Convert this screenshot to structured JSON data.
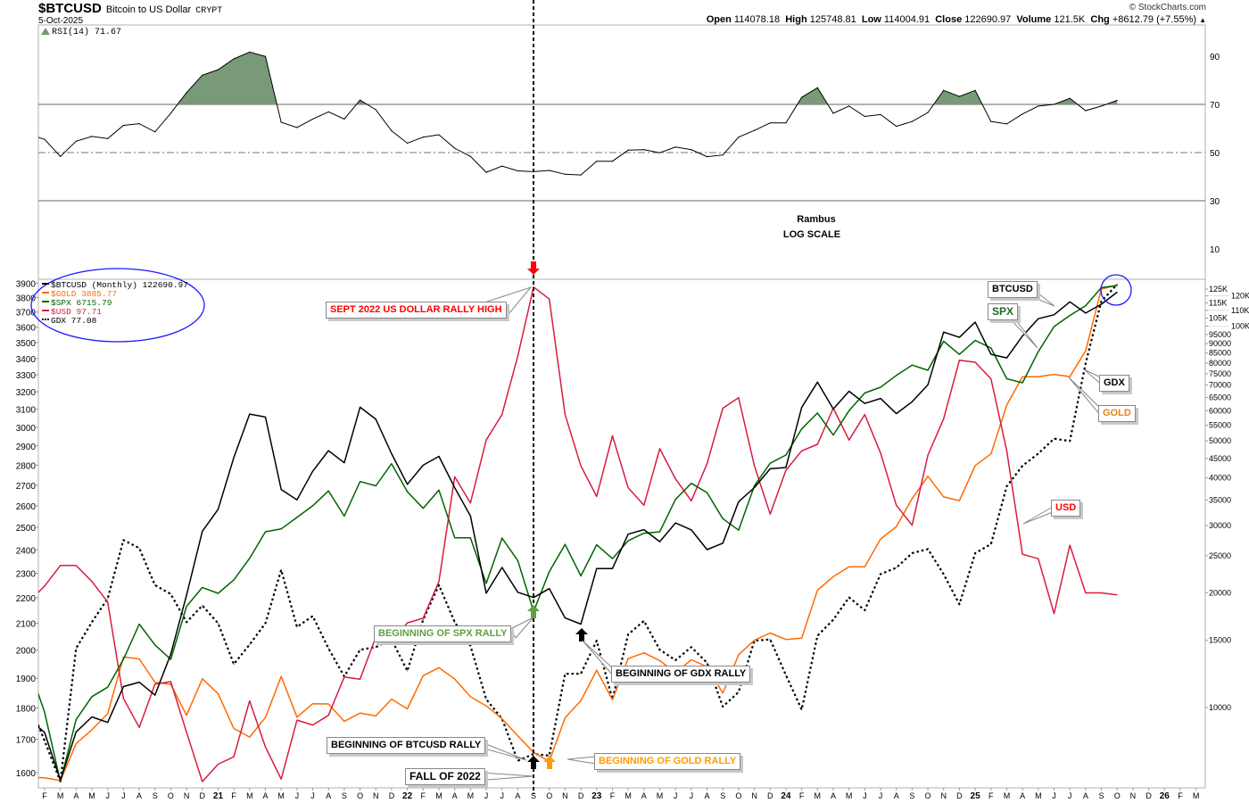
{
  "header": {
    "symbol": "$BTCUSD",
    "name": "Bitcoin to US Dollar",
    "exchange": "CRYPT",
    "date": "5-Oct-2025",
    "copyright": "© StockCharts.com",
    "open_label": "Open",
    "open": "114078.18",
    "high_label": "High",
    "high": "125748.81",
    "low_label": "Low",
    "low": "114004.91",
    "close_label": "Close",
    "close": "122690.97",
    "volume_label": "Volume",
    "volume": "121.5K",
    "chg_label": "Chg",
    "chg": "+8612.79 (+7.55%)",
    "chg_icon": "triangle-up-icon"
  },
  "rsi_panel": {
    "title": "RSI(14) 71.67",
    "ticks": [
      "90",
      "70",
      "50",
      "30",
      "10"
    ],
    "overbought": 70,
    "midline": 50,
    "oversold": 30,
    "fill_color": "#789a78"
  },
  "notes": {
    "author": "Rambus",
    "scale": "LOG SCALE"
  },
  "legend": [
    {
      "text": "$BTCUSD (Monthly) 122690.97",
      "color": "#000000"
    },
    {
      "text": "$GOLD 3885.77",
      "color": "#ff6a00"
    },
    {
      "text": "$SPX 6715.79",
      "color": "#006400"
    },
    {
      "text": "$USD 97.71",
      "color": "#d81c3f"
    },
    {
      "text": "GDX 77.08",
      "color": "#000000"
    }
  ],
  "callouts": {
    "usd_high": {
      "text": "SEPT 2022 US DOLLAR RALLY HIGH",
      "color": "#ff0000"
    },
    "btcusd": {
      "text": "BTCUSD",
      "color": "#000000"
    },
    "spx": {
      "text": "SPX",
      "color": "#1e6b1e"
    },
    "gdx": {
      "text": "GDX",
      "color": "#000000"
    },
    "gold": {
      "text": "GOLD",
      "color": "#e8841a"
    },
    "usd": {
      "text": "USD",
      "color": "#ff0000"
    },
    "spx_rally": {
      "text": "BEGINNING OF SPX RALLY",
      "color": "#5fa040"
    },
    "gdx_rally": {
      "text": "BEGINNING OF GDX RALLY",
      "color": "#000000"
    },
    "btc_rally": {
      "text": "BEGINNING OF BTCUSD RALLY",
      "color": "#000000"
    },
    "fall": {
      "text": "FALL OF 2022",
      "color": "#000000"
    },
    "gold_rally": {
      "text": "BEGINNING OF GOLD RALLY",
      "color": "#ff9a00"
    }
  },
  "chart_data": [
    {
      "type": "line",
      "title": "RSI(14) 71.67",
      "ylim": [
        0,
        100
      ],
      "yticks": [
        90,
        70,
        50,
        30,
        10
      ],
      "x_start": "2020-01",
      "x_end": "2025-10",
      "x_freq": "monthly",
      "series": [
        {
          "name": "RSI(14)",
          "values": [
            57.5,
            55.5,
            48.4,
            54.7,
            56.7,
            55.8,
            61.3,
            62.0,
            58.6,
            66.3,
            74.9,
            82.1,
            84.4,
            88.9,
            91.7,
            89.9,
            62.6,
            60.4,
            63.9,
            66.9,
            63.9,
            71.8,
            67.8,
            59.0,
            53.9,
            56.4,
            57.4,
            51.8,
            48.4,
            41.8,
            44.4,
            42.4,
            42.1,
            42.6,
            41.0,
            40.7,
            46.4,
            46.4,
            51.0,
            51.2,
            49.9,
            52.3,
            51.2,
            48.3,
            49.0,
            56.4,
            59.2,
            62.3,
            62.3,
            72.9,
            76.9,
            66.3,
            69.3,
            65.0,
            65.8,
            60.9,
            62.9,
            66.6,
            75.8,
            73.3,
            75.8,
            62.9,
            61.9,
            66.0,
            69.3,
            70.0,
            72.5,
            67.4,
            69.3,
            71.67
          ]
        }
      ]
    },
    {
      "type": "line",
      "title": "$BTCUSD (Monthly)",
      "log_scale": true,
      "x_start": "2020-01",
      "x_end": "2025-10",
      "x_freq": "monthly",
      "x_tick_labels": [
        "F",
        "M",
        "A",
        "M",
        "J",
        "J",
        "A",
        "S",
        "O",
        "N",
        "D",
        "21",
        "F",
        "M",
        "A",
        "M",
        "J",
        "J",
        "A",
        "S",
        "O",
        "N",
        "D",
        "22",
        "F",
        "M",
        "A",
        "M",
        "J",
        "J",
        "A",
        "S",
        "O",
        "N",
        "D",
        "23",
        "F",
        "M",
        "A",
        "M",
        "J",
        "J",
        "A",
        "S",
        "O",
        "N",
        "D",
        "24",
        "F",
        "M",
        "A",
        "M",
        "J",
        "J",
        "A",
        "S",
        "O",
        "N",
        "D",
        "25",
        "F",
        "M",
        "A",
        "M",
        "J",
        "J",
        "A",
        "S",
        "O",
        "N",
        "D",
        "26",
        "F",
        "M"
      ],
      "left_axis": {
        "ticks": [
          1600,
          1700,
          1800,
          1900,
          2000,
          2100,
          2200,
          2300,
          2400,
          2500,
          2600,
          2700,
          2800,
          2900,
          3000,
          3100,
          3200,
          3300,
          3400,
          3500,
          3600,
          3700,
          3800,
          3900
        ]
      },
      "right_axis": {
        "ticks": [
          {
            "v": 125000,
            "label": "125K"
          },
          {
            "v": 120000,
            "label": "120K"
          },
          {
            "v": 115000,
            "label": "115K"
          },
          {
            "v": 110000,
            "label": "110K"
          },
          {
            "v": 105000,
            "label": "105K"
          },
          {
            "v": 100000,
            "label": "100K"
          },
          {
            "v": 95000,
            "label": "95000"
          },
          {
            "v": 90000,
            "label": "90000"
          },
          {
            "v": 85000,
            "label": "85000"
          },
          {
            "v": 80000,
            "label": "80000"
          },
          {
            "v": 75000,
            "label": "75000"
          },
          {
            "v": 70000,
            "label": "70000"
          },
          {
            "v": 65000,
            "label": "65000"
          },
          {
            "v": 60000,
            "label": "60000"
          },
          {
            "v": 55000,
            "label": "55000"
          },
          {
            "v": 50000,
            "label": "50000"
          },
          {
            "v": 45000,
            "label": "45000"
          },
          {
            "v": 40000,
            "label": "40000"
          },
          {
            "v": 35000,
            "label": "35000"
          },
          {
            "v": 30000,
            "label": "30000"
          },
          {
            "v": 25000,
            "label": "25000"
          },
          {
            "v": 20000,
            "label": "20000"
          },
          {
            "v": 15000,
            "label": "15000"
          },
          {
            "v": 10000,
            "label": "10000"
          }
        ]
      },
      "series": [
        {
          "name": "$BTCUSD",
          "axis": "right",
          "color": "#000000",
          "style": "solid",
          "values": [
            9350,
            8600,
            6440,
            8630,
            9450,
            9140,
            11350,
            11650,
            10780,
            13800,
            19700,
            28990,
            33100,
            45240,
            58800,
            57750,
            37300,
            35040,
            41630,
            47150,
            43820,
            61300,
            57000,
            46300,
            38480,
            43190,
            45540,
            37710,
            31800,
            19940,
            23300,
            20050,
            19430,
            20500,
            17170,
            16550,
            23140,
            23150,
            28480,
            29270,
            27220,
            30480,
            29230,
            25940,
            26970,
            34650,
            37720,
            42270,
            42580,
            61200,
            71300,
            60640,
            67500,
            62700,
            64620,
            58970,
            63330,
            70200,
            96450,
            93430,
            102400,
            84350,
            82550,
            94200,
            104600,
            107100,
            115800,
            108200,
            114100,
            122690.97
          ]
        },
        {
          "name": "$GOLD",
          "axis": "left",
          "color": "#ff6a00",
          "style": "solid",
          "values": [
            1587,
            1585,
            1577,
            1687,
            1730,
            1781,
            1975,
            1968,
            1886,
            1879,
            1776,
            1898,
            1847,
            1734,
            1707,
            1769,
            1906,
            1770,
            1814,
            1813,
            1757,
            1783,
            1774,
            1829,
            1797,
            1909,
            1937,
            1897,
            1837,
            1807,
            1765,
            1711,
            1660,
            1633,
            1768,
            1824,
            1928,
            1827,
            1969,
            1990,
            1962,
            1919,
            1965,
            1940,
            1849,
            1983,
            2036,
            2063,
            2039,
            2044,
            2230,
            2286,
            2327,
            2327,
            2448,
            2503,
            2635,
            2744,
            2643,
            2625,
            2798,
            2858,
            3124,
            3289,
            3289,
            3303,
            3290,
            3448,
            3858,
            3885.77
          ]
        },
        {
          "name": "$SPX",
          "axis": "own",
          "color": "#006400",
          "style": "solid",
          "values": [
            3226,
            2954,
            2585,
            2912,
            3044,
            3100,
            3271,
            3500,
            3363,
            3270,
            3622,
            3756,
            3714,
            3811,
            3973,
            4181,
            4204,
            4298,
            4395,
            4523,
            4308,
            4605,
            4567,
            4766,
            4516,
            4374,
            4530,
            4132,
            4132,
            3785,
            4130,
            3955,
            3586,
            3872,
            4080,
            3840,
            4077,
            3970,
            4109,
            4169,
            4180,
            4450,
            4589,
            4508,
            4288,
            4194,
            4568,
            4770,
            4846,
            5096,
            5254,
            5036,
            5278,
            5460,
            5522,
            5648,
            5762,
            5705,
            6032,
            5882,
            6041,
            5955,
            5612,
            5569,
            5912,
            6205,
            6339,
            6460,
            6688,
            6715.79
          ]
        },
        {
          "name": "$USD",
          "axis": "own",
          "color": "#d81c3f",
          "style": "solid",
          "values": [
            97.4,
            98.1,
            99.0,
            99.0,
            98.3,
            97.4,
            93.3,
            92.1,
            93.9,
            94.0,
            91.9,
            89.9,
            90.6,
            90.9,
            93.2,
            91.3,
            90.0,
            92.4,
            92.2,
            92.6,
            94.2,
            94.1,
            95.9,
            95.7,
            96.5,
            96.7,
            98.3,
            103.0,
            101.8,
            104.7,
            105.9,
            108.7,
            112.1,
            111.5,
            105.9,
            103.5,
            102.1,
            104.9,
            102.5,
            101.7,
            104.3,
            102.9,
            101.9,
            103.6,
            106.2,
            106.7,
            103.5,
            101.3,
            103.3,
            104.2,
            104.5,
            106.2,
            104.7,
            105.9,
            104.1,
            101.7,
            100.8,
            104.0,
            105.7,
            108.5,
            108.4,
            107.6,
            104.2,
            99.5,
            99.3,
            96.9,
            99.9,
            97.8,
            97.8,
            97.71
          ]
        },
        {
          "name": "GDX",
          "axis": "own",
          "color": "#000000",
          "style": "dotted",
          "values": [
            27.8,
            25.3,
            22.9,
            31.7,
            33.8,
            35.8,
            41.3,
            40.5,
            37.0,
            36.2,
            33.8,
            35.2,
            33.7,
            30.5,
            32.0,
            33.7,
            38.4,
            33.4,
            34.3,
            31.7,
            29.6,
            31.6,
            31.8,
            32.4,
            30.0,
            34.0,
            37.0,
            33.8,
            31.9,
            28.0,
            26.7,
            24.1,
            24.5,
            24.4,
            29.8,
            29.8,
            32.3,
            28.0,
            32.8,
            33.9,
            31.6,
            30.8,
            31.8,
            30.6,
            27.5,
            28.5,
            32.3,
            32.4,
            29.7,
            27.3,
            32.7,
            34.0,
            35.9,
            34.8,
            38.0,
            38.6,
            40.0,
            40.4,
            38.0,
            35.3,
            40.0,
            40.9,
            47.1,
            49.5,
            51.0,
            52.9,
            52.6,
            63.6,
            74.0,
            77.08
          ]
        }
      ],
      "annotations": {
        "vertical_marker": "2022-09",
        "arrows": [
          {
            "month": "2022-09",
            "direction": "down",
            "color": "#ff0000"
          },
          {
            "month": "2022-09",
            "direction": "up",
            "color": "#5fa040"
          },
          {
            "month": "2022-09",
            "direction": "up",
            "color": "#000000"
          },
          {
            "month": "2022-10",
            "direction": "up",
            "color": "#ff9a00"
          },
          {
            "month": "2022-12",
            "direction": "up",
            "color": "#000000"
          }
        ],
        "circles_color": "#1a1aff"
      }
    }
  ]
}
